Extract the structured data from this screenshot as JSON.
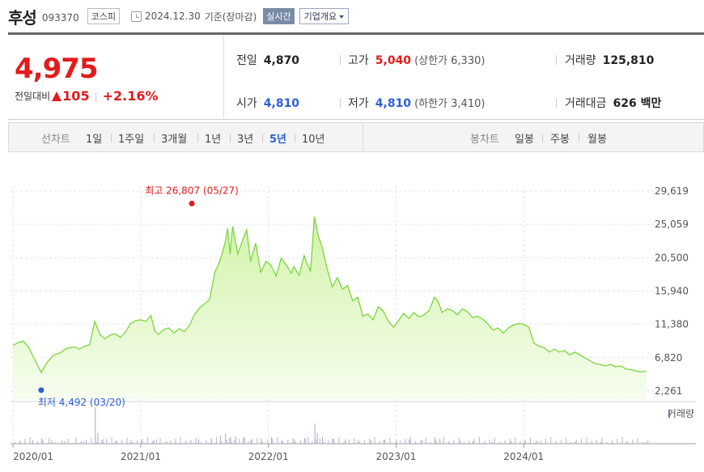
{
  "header": {
    "name": "후성",
    "code": "093370",
    "market": "코스피",
    "date": "2024.12.30",
    "basis": "기준(장마감)",
    "realtime": "실시간",
    "corp_info": "기업개요"
  },
  "quote": {
    "price": "4,975",
    "change_label": "전일대비",
    "change_amount": "105",
    "change_percent": "+2.16%",
    "prev_close_label": "전일",
    "prev_close": "4,870",
    "high_label": "고가",
    "high": "5,040",
    "upper_limit": "(상한가 6,330)",
    "volume_label": "거래량",
    "volume": "125,810",
    "open_label": "시가",
    "open": "4,810",
    "low_label": "저가",
    "low": "4,810",
    "lower_limit": "(하한가 3,410)",
    "turnover_label": "거래대금",
    "turnover": "626 백만"
  },
  "tabs": {
    "line_chart_label": "선차트",
    "periods": [
      "1일",
      "1주일",
      "3개월",
      "1년",
      "3년",
      "5년",
      "10년"
    ],
    "active_period": "5년",
    "candle_chart_label": "봉차트",
    "candles": [
      "일봉",
      "주봉",
      "월봉"
    ]
  },
  "colors": {
    "up": "#e31b1b",
    "down": "#2c5fd9",
    "line": "#7bd63e",
    "fill_top": "#d2f3a8",
    "fill_bottom": "#f6fdef",
    "volume": "#b4b4d2"
  },
  "chart_data": {
    "type": "area",
    "y_ticks": [
      "29,619",
      "25,059",
      "20,500",
      "15,940",
      "11,380",
      "6,820",
      "2,261"
    ],
    "ylim": [
      2261,
      29619
    ],
    "x_ticks": [
      "2020/01",
      "2021/01",
      "2022/01",
      "2023/01",
      "2024/01"
    ],
    "volume_label": "거래량",
    "high_annotation": "최고 26,807 (05/27)",
    "low_annotation": "최저 4,492 (03/20)",
    "high_point": {
      "x": 2021.4,
      "y": 26807
    },
    "low_point": {
      "x": 2020.22,
      "y": 4492
    },
    "series": [
      {
        "points": [
          [
            2020.0,
            8500
          ],
          [
            2020.04,
            8900
          ],
          [
            2020.08,
            9100
          ],
          [
            2020.12,
            8300
          ],
          [
            2020.18,
            6200
          ],
          [
            2020.22,
            4800
          ],
          [
            2020.27,
            6300
          ],
          [
            2020.32,
            7200
          ],
          [
            2020.37,
            7500
          ],
          [
            2020.42,
            8100
          ],
          [
            2020.48,
            8300
          ],
          [
            2020.52,
            8000
          ],
          [
            2020.56,
            8400
          ],
          [
            2020.6,
            8600
          ],
          [
            2020.64,
            11800
          ],
          [
            2020.68,
            10000
          ],
          [
            2020.72,
            9400
          ],
          [
            2020.76,
            9900
          ],
          [
            2020.8,
            10100
          ],
          [
            2020.84,
            9600
          ],
          [
            2020.88,
            10300
          ],
          [
            2020.92,
            11500
          ],
          [
            2020.96,
            11900
          ],
          [
            2021.0,
            12000
          ],
          [
            2021.04,
            11800
          ],
          [
            2021.08,
            12600
          ],
          [
            2021.11,
            10500
          ],
          [
            2021.14,
            10000
          ],
          [
            2021.18,
            10700
          ],
          [
            2021.22,
            10900
          ],
          [
            2021.26,
            10200
          ],
          [
            2021.3,
            10800
          ],
          [
            2021.34,
            10400
          ],
          [
            2021.38,
            11200
          ],
          [
            2021.42,
            12700
          ],
          [
            2021.46,
            13600
          ],
          [
            2021.5,
            14200
          ],
          [
            2021.54,
            14800
          ],
          [
            2021.58,
            18500
          ],
          [
            2021.62,
            20000
          ],
          [
            2021.66,
            22500
          ],
          [
            2021.68,
            24500
          ],
          [
            2021.7,
            21000
          ],
          [
            2021.72,
            24800
          ],
          [
            2021.76,
            21000
          ],
          [
            2021.8,
            23000
          ],
          [
            2021.83,
            24300
          ],
          [
            2021.86,
            20000
          ],
          [
            2021.9,
            22500
          ],
          [
            2021.94,
            18500
          ],
          [
            2021.98,
            20000
          ],
          [
            2022.02,
            19500
          ],
          [
            2022.06,
            18000
          ],
          [
            2022.1,
            20400
          ],
          [
            2022.14,
            19500
          ],
          [
            2022.18,
            18400
          ],
          [
            2022.2,
            19300
          ],
          [
            2022.24,
            18100
          ],
          [
            2022.28,
            20800
          ],
          [
            2022.3,
            19800
          ],
          [
            2022.33,
            18700
          ],
          [
            2022.36,
            26100
          ],
          [
            2022.39,
            23500
          ],
          [
            2022.42,
            22000
          ],
          [
            2022.46,
            19000
          ],
          [
            2022.5,
            16500
          ],
          [
            2022.54,
            17800
          ],
          [
            2022.58,
            16200
          ],
          [
            2022.62,
            16700
          ],
          [
            2022.66,
            14600
          ],
          [
            2022.7,
            15100
          ],
          [
            2022.74,
            12500
          ],
          [
            2022.78,
            12800
          ],
          [
            2022.82,
            12000
          ],
          [
            2022.86,
            13800
          ],
          [
            2022.9,
            13200
          ],
          [
            2022.94,
            11800
          ],
          [
            2022.98,
            11000
          ],
          [
            2023.02,
            11900
          ],
          [
            2023.06,
            12900
          ],
          [
            2023.1,
            12200
          ],
          [
            2023.14,
            13000
          ],
          [
            2023.18,
            12400
          ],
          [
            2023.22,
            12700
          ],
          [
            2023.26,
            13300
          ],
          [
            2023.3,
            15100
          ],
          [
            2023.33,
            14500
          ],
          [
            2023.36,
            13000
          ],
          [
            2023.4,
            13500
          ],
          [
            2023.44,
            13300
          ],
          [
            2023.48,
            12700
          ],
          [
            2023.52,
            13500
          ],
          [
            2023.56,
            13100
          ],
          [
            2023.6,
            12300
          ],
          [
            2023.64,
            12500
          ],
          [
            2023.68,
            12100
          ],
          [
            2023.72,
            11400
          ],
          [
            2023.76,
            10600
          ],
          [
            2023.8,
            10900
          ],
          [
            2023.84,
            10200
          ],
          [
            2023.88,
            10900
          ],
          [
            2023.92,
            11300
          ],
          [
            2023.96,
            11500
          ],
          [
            2024.0,
            11400
          ],
          [
            2024.04,
            11000
          ],
          [
            2024.08,
            8800
          ],
          [
            2024.12,
            8400
          ],
          [
            2024.16,
            8200
          ],
          [
            2024.2,
            7600
          ],
          [
            2024.24,
            8000
          ],
          [
            2024.28,
            7600
          ],
          [
            2024.32,
            7800
          ],
          [
            2024.36,
            7200
          ],
          [
            2024.4,
            7600
          ],
          [
            2024.44,
            7200
          ],
          [
            2024.48,
            6800
          ],
          [
            2024.52,
            6400
          ],
          [
            2024.56,
            6000
          ],
          [
            2024.6,
            5900
          ],
          [
            2024.64,
            5700
          ],
          [
            2024.68,
            5900
          ],
          [
            2024.72,
            5600
          ],
          [
            2024.76,
            5700
          ],
          [
            2024.8,
            5300
          ],
          [
            2024.84,
            5200
          ],
          [
            2024.88,
            5000
          ],
          [
            2024.92,
            4900
          ],
          [
            2024.96,
            4975
          ]
        ]
      }
    ],
    "volume_bars": [
      [
        2020.05,
        8
      ],
      [
        2020.15,
        10
      ],
      [
        2020.22,
        14
      ],
      [
        2020.3,
        9
      ],
      [
        2020.4,
        7
      ],
      [
        2020.55,
        6
      ],
      [
        2020.64,
        100
      ],
      [
        2020.66,
        30
      ],
      [
        2020.7,
        12
      ],
      [
        2020.8,
        9
      ],
      [
        2020.92,
        10
      ],
      [
        2021.0,
        8
      ],
      [
        2021.1,
        11
      ],
      [
        2021.2,
        7
      ],
      [
        2021.35,
        8
      ],
      [
        2021.45,
        12
      ],
      [
        2021.55,
        14
      ],
      [
        2021.62,
        22
      ],
      [
        2021.66,
        28
      ],
      [
        2021.7,
        18
      ],
      [
        2021.74,
        20
      ],
      [
        2021.8,
        16
      ],
      [
        2021.86,
        12
      ],
      [
        2021.94,
        14
      ],
      [
        2022.02,
        18
      ],
      [
        2022.1,
        10
      ],
      [
        2022.2,
        12
      ],
      [
        2022.28,
        16
      ],
      [
        2022.36,
        55
      ],
      [
        2022.38,
        30
      ],
      [
        2022.42,
        20
      ],
      [
        2022.5,
        14
      ],
      [
        2022.6,
        12
      ],
      [
        2022.7,
        10
      ],
      [
        2022.8,
        9
      ],
      [
        2022.9,
        11
      ],
      [
        2023.0,
        10
      ],
      [
        2023.1,
        12
      ],
      [
        2023.2,
        9
      ],
      [
        2023.3,
        18
      ],
      [
        2023.34,
        10
      ],
      [
        2023.5,
        8
      ],
      [
        2023.6,
        7
      ],
      [
        2023.75,
        6
      ],
      [
        2023.9,
        7
      ],
      [
        2024.0,
        6
      ],
      [
        2024.1,
        8
      ],
      [
        2024.25,
        5
      ],
      [
        2024.4,
        6
      ],
      [
        2024.6,
        5
      ],
      [
        2024.8,
        4
      ],
      [
        2024.95,
        4
      ]
    ]
  }
}
